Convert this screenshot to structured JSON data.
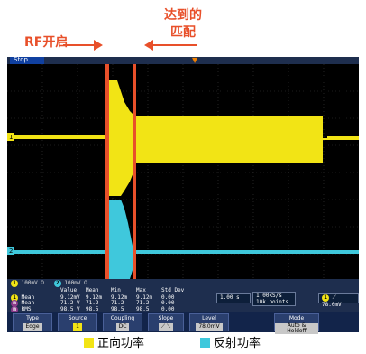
{
  "annotations": {
    "rf_on": "RF开启",
    "match_line1": "达到的",
    "match_line2": "匹配",
    "color": "#e8502a"
  },
  "scope": {
    "status": "Stop",
    "channel_line": "100mV Ω   100mV Ω",
    "ch1_scale": "100mV Ω",
    "ch2_scale": "100mV Ω",
    "ch1_color": "#f2e415",
    "ch2_color": "#3fc8dc",
    "ch1_label": "1",
    "ch2_label": "2",
    "table": {
      "headers": [
        "",
        "Value",
        "Mean",
        "Min",
        "Max",
        "Std Dev"
      ],
      "rows": [
        {
          "label": "Mean",
          "badge": "1",
          "values": [
            "9.12mV",
            "9.12m",
            "9.12m",
            "9.12m",
            "0.00"
          ]
        },
        {
          "label": "Mean",
          "badge": "m",
          "values": [
            "71.2 V",
            "71.2",
            "71.2",
            "71.2",
            "0.00"
          ]
        },
        {
          "label": "RMS",
          "badge": "m",
          "values": [
            "98.5 V",
            "98.5",
            "98.5",
            "98.5",
            "0.00"
          ]
        }
      ]
    },
    "timebase": "1.00 s",
    "sample_rate": "1.00kS/s",
    "record_length": "10k points",
    "trigger_readout": "78.0mV",
    "trigger_channel": "1"
  },
  "buttons": [
    {
      "label": "Type",
      "value": "Edge"
    },
    {
      "label": "Source",
      "value": "1"
    },
    {
      "label": "Coupling",
      "value": "DC"
    },
    {
      "label": "Slope",
      "value": "⟋  ⟍"
    },
    {
      "label": "Level",
      "value": "78.0mV"
    },
    {
      "label": "Mode",
      "value": "Auto & Holdoff"
    }
  ],
  "legend": {
    "forward": "正向功率",
    "reflected": "反射功率"
  }
}
